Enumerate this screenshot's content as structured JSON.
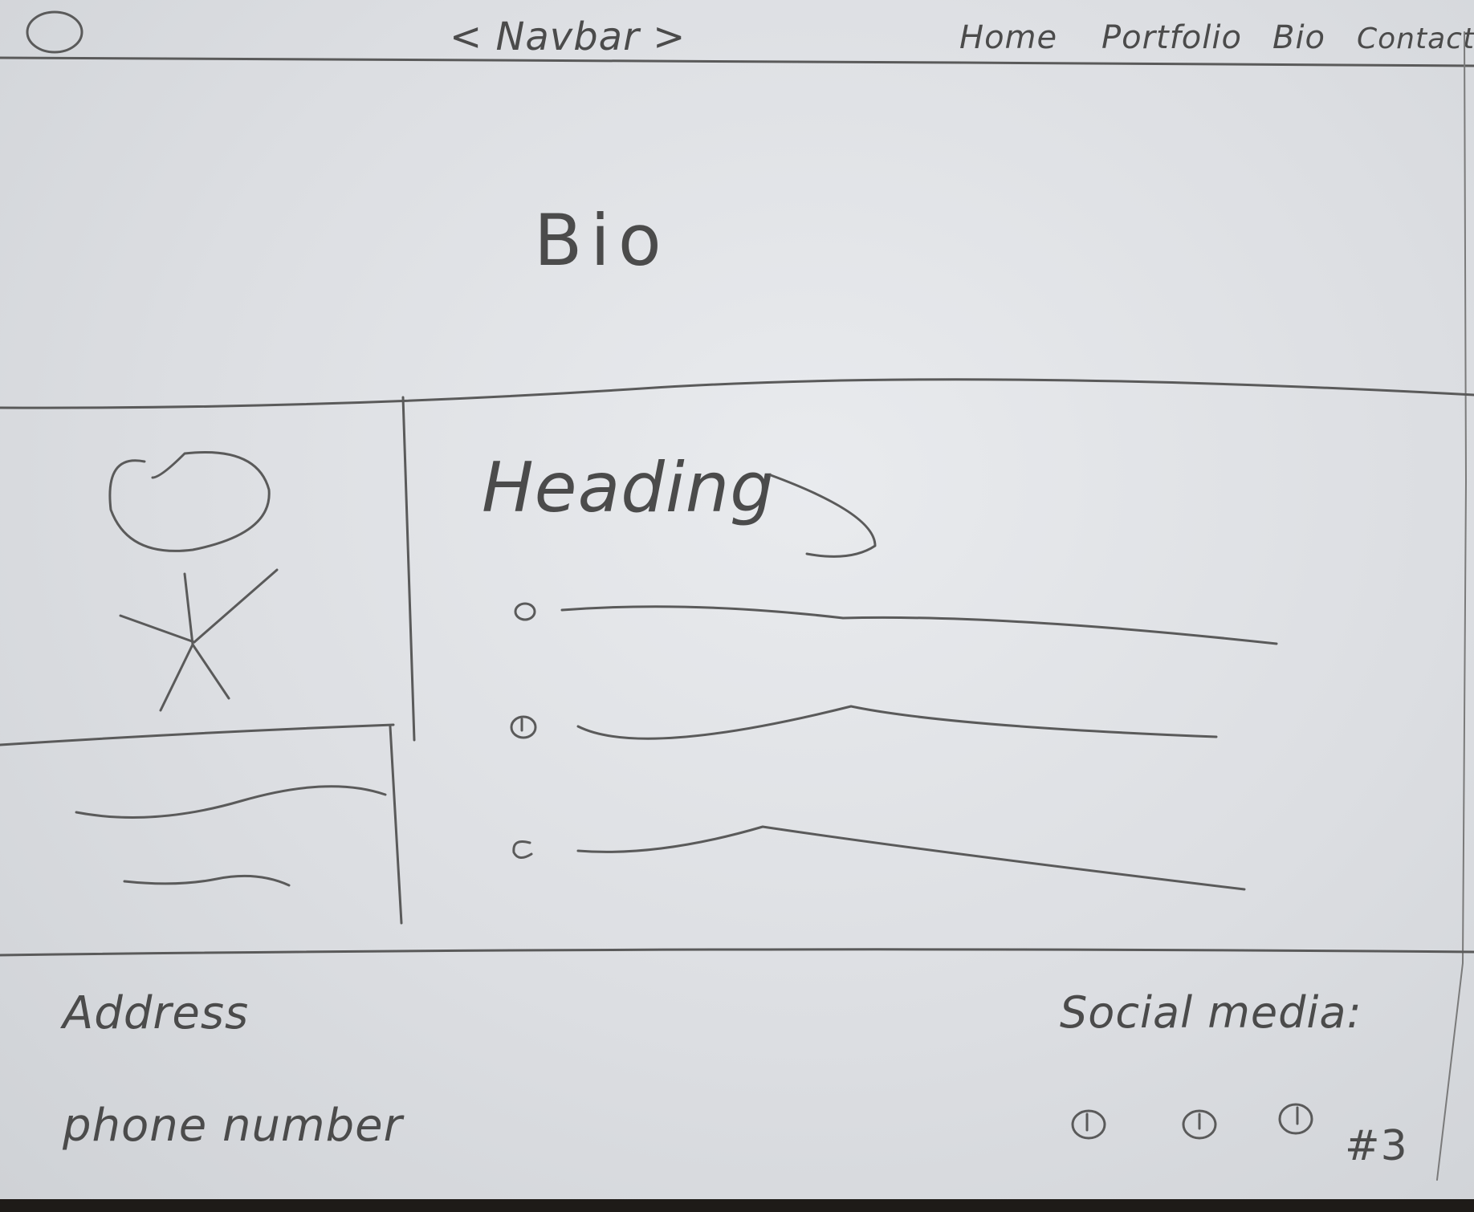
{
  "navbar": {
    "title": "< Navbar >",
    "links": [
      "Home",
      "Portfolio",
      "Bio",
      "Contact"
    ]
  },
  "page_title": "Bio",
  "content": {
    "heading": "Heading"
  },
  "footer": {
    "address_label": "Address",
    "phone_label": "phone number",
    "social_label": "Social media:",
    "social_annotation": "#3"
  },
  "icons": {
    "logo": "circle-logo-icon",
    "profile": "stick-figure-icon",
    "bullets": [
      "bullet-icon",
      "bullet-icon",
      "bullet-icon"
    ],
    "social": [
      "social-icon",
      "social-icon",
      "social-icon"
    ]
  },
  "colors": {
    "paper": "#dfe1e4",
    "pencil": "#5a5a5a"
  }
}
